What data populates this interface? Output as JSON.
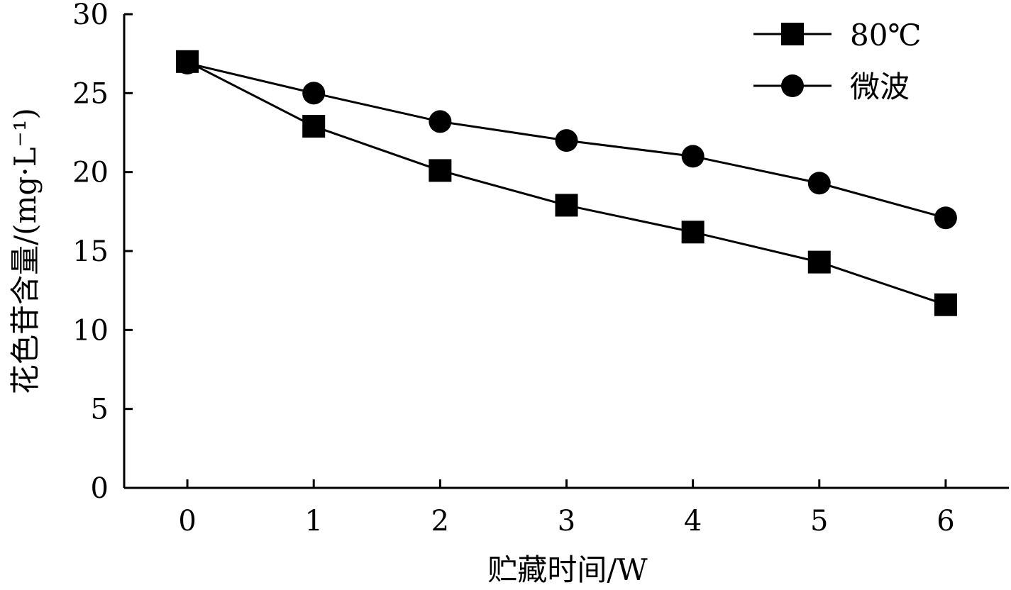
{
  "chart_data": {
    "type": "line",
    "xlabel": "贮藏时间/W",
    "ylabel": "花色苷含量/(mg·L⁻¹)",
    "x": [
      0,
      1,
      2,
      3,
      4,
      5,
      6
    ],
    "xlim": [
      -0.5,
      6.5
    ],
    "ylim": [
      0,
      30
    ],
    "x_ticks": [
      "0",
      "1",
      "2",
      "3",
      "4",
      "5",
      "6"
    ],
    "y_ticks": [
      "0",
      "5",
      "10",
      "15",
      "20",
      "25",
      "30"
    ],
    "grid": false,
    "legend_position": "top-right",
    "series": [
      {
        "name": "80℃",
        "marker": "square",
        "color": "#000000",
        "values": [
          27.0,
          22.9,
          20.1,
          17.9,
          16.2,
          14.3,
          11.6
        ]
      },
      {
        "name": "微波",
        "marker": "circle",
        "color": "#000000",
        "values": [
          26.9,
          25.0,
          23.2,
          22.0,
          21.0,
          19.3,
          17.1
        ]
      }
    ]
  }
}
